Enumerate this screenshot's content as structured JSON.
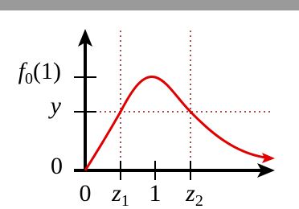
{
  "y_labels": [
    {
      "main": "f",
      "sub": "0",
      "suffix": "(1)"
    },
    {
      "main": "y"
    },
    {
      "main": "0"
    }
  ],
  "x_labels": [
    {
      "main": "0"
    },
    {
      "main": "z",
      "sub": "1"
    },
    {
      "main": "1"
    },
    {
      "main": "z",
      "sub": "2"
    }
  ]
}
